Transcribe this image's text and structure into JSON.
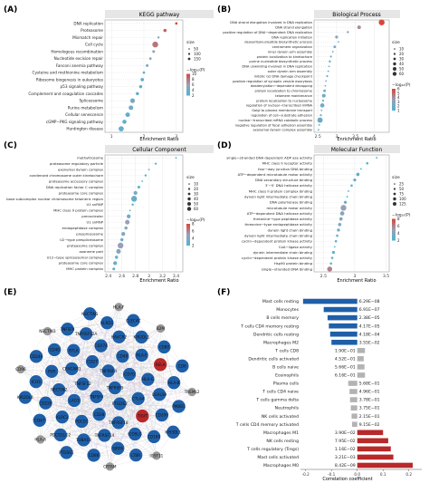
{
  "panels": {
    "a": {
      "letter": "(A)",
      "title": "KEGG pathway",
      "xlabel": "Enrichment Ratio"
    },
    "b": {
      "letter": "(B)",
      "title": "Biological Process",
      "xlabel": "Enrichment Ratio"
    },
    "c": {
      "letter": "(C)",
      "title": "Cellular Component",
      "xlabel": "Enrichment Ratio"
    },
    "d": {
      "letter": "(D)",
      "title": "Molecular Function",
      "xlabel": "Enrichment Ratio"
    },
    "e": {
      "letter": "(E)"
    },
    "f": {
      "letter": "(F)",
      "xlabel": "Correlation coefficient"
    }
  },
  "legends": {
    "size_title": "size",
    "color_title": "−log₁₀(P)"
  },
  "colors": {
    "low": "#4fb4d0",
    "mid": "#9aa0b8",
    "high": "#d9473a",
    "network_red": "#b8292a",
    "network_blue": "#1f5fa8",
    "network_gray": "#9a9a9a",
    "bar_blue": "#1f5fa8",
    "bar_gray": "#b3b3b3",
    "bar_red": "#b8292a"
  },
  "chart_data": [
    {
      "id": "kegg",
      "type": "scatter",
      "title": "KEGG pathway",
      "xlabel": "Enrichment Ratio",
      "xlim": [
        0.8,
        3.2
      ],
      "xticks": [
        1,
        2,
        3
      ],
      "size_legend": [
        50,
        100,
        150
      ],
      "color_legend": [
        2,
        4,
        6,
        8,
        10
      ],
      "categories": [
        "DNA replication",
        "Proteasome",
        "Mismatch repair",
        "Cell cycle",
        "Homologous recombination",
        "Nucleotide excision repair",
        "Fanconi anemia pathway",
        "Cysteine and methionine metabolism",
        "Ribosome biogenesis in eukaryotes",
        "p53 signaling pathway",
        "Complement and coagulation cascades",
        "Spliceosome",
        "Purine metabolism",
        "Cellular senescence",
        "cGMP−PKG signaling pathway",
        "Huntington disease"
      ],
      "x": [
        3.0,
        2.65,
        2.45,
        2.35,
        2.3,
        2.2,
        2.1,
        2.0,
        1.95,
        1.9,
        1.8,
        1.65,
        1.6,
        1.5,
        1.4,
        1.3
      ],
      "size": [
        40,
        55,
        35,
        130,
        45,
        40,
        45,
        40,
        60,
        55,
        55,
        95,
        90,
        90,
        80,
        110
      ],
      "neglog10p": [
        10,
        9,
        5,
        8,
        5,
        4,
        4,
        3,
        3,
        3,
        3,
        4,
        4,
        3,
        3,
        3
      ]
    },
    {
      "id": "bp",
      "type": "scatter",
      "title": "Biological Process",
      "xlabel": "Enrichment Ratio",
      "xlim": [
        2.4,
        4.4
      ],
      "xticks": [
        2.5,
        3.0,
        3.5,
        4.0
      ],
      "size_legend": [
        10,
        20,
        30,
        40,
        50,
        60
      ],
      "color_legend": [
        1,
        2,
        3,
        4,
        5,
        6
      ],
      "categories": [
        "DNA strand elongation involved in DNA replication",
        "DNA strand elongation",
        "positive regulation of DNA−dependent DNA replication",
        "DNA replication initiation",
        "deoxyribonucleotide biosynthetic process",
        "centromere organization",
        "inner dynein arm assembly",
        "protein localization to kinetochore",
        "purine nucleotide biosynthetic process",
        "DNA unwinding involved in DNA replication",
        "outer dynein arm assembly",
        "mitotic G2 DNA damage checkpoint",
        "positive regulation of synaptic vesicle exocytosis",
        "deadenylation−dependent decapping",
        "protein localization to chromosome",
        "telomere maintenance",
        "protein localization to nucleosome",
        "regulation of nuclear−transcribed mRNA",
        "Golgi to plasma membrane transport",
        "regulation of cell−substrate adhesion",
        "nuclear−transcribed mRNA catabolic process",
        "negative regulation of focal adhesion assembly",
        "axonemal dynein complex assembly"
      ],
      "x": [
        4.2,
        3.6,
        3.3,
        3.0,
        3.05,
        2.95,
        2.9,
        2.85,
        2.82,
        2.8,
        2.78,
        2.75,
        2.72,
        2.7,
        2.68,
        2.66,
        2.64,
        2.62,
        2.6,
        2.58,
        2.56,
        2.54,
        2.52
      ],
      "size": [
        45,
        25,
        15,
        20,
        12,
        18,
        12,
        14,
        15,
        12,
        12,
        14,
        12,
        12,
        18,
        25,
        14,
        30,
        12,
        14,
        40,
        12,
        12
      ],
      "neglog10p": [
        6,
        4,
        3,
        3,
        2,
        2,
        2,
        2,
        2,
        2,
        2,
        2,
        2,
        2,
        2,
        2,
        2,
        2,
        2,
        2,
        2,
        2,
        2
      ]
    },
    {
      "id": "cc",
      "type": "scatter",
      "title": "Cellular Component",
      "xlabel": "Enrichment Ratio",
      "xlim": [
        2.35,
        3.5
      ],
      "xticks": [
        2.4,
        2.6,
        2.8,
        3.0,
        3.2,
        3.4
      ],
      "size_legend": [
        10,
        20,
        30,
        40,
        50,
        60
      ],
      "color_legend": [
        2,
        4,
        6,
        8
      ],
      "categories": [
        "methyltrosome",
        "proteasome regulatory particle",
        "axonemal dynein complex",
        "condensed chromosome outer kinetochore",
        "proteasome accessory complex",
        "DNA replication factor C complex",
        "proteasome core complex",
        "base subcomplex nuclear chromosome telomeric region",
        "U1 snRNP",
        "MHC class II protein complex",
        "prenucleolar",
        "U1 snRNP",
        "endopeptidase complex",
        "prespliceosome",
        "U2−type prespliceosome",
        "proteasome complex",
        "axoneme part",
        "U12−type spliceosomal complex",
        "proteasome core complex",
        "MHC protein complex"
      ],
      "x": [
        3.4,
        3.1,
        3.0,
        2.95,
        2.9,
        2.85,
        2.8,
        2.78,
        2.76,
        2.72,
        2.7,
        2.68,
        2.66,
        2.62,
        2.6,
        2.58,
        2.55,
        2.52,
        2.5,
        2.48
      ],
      "size": [
        12,
        14,
        12,
        15,
        12,
        18,
        25,
        40,
        15,
        12,
        25,
        30,
        20,
        25,
        20,
        40,
        30,
        20,
        25,
        18
      ],
      "neglog10p": [
        2,
        2,
        2,
        2,
        2,
        2,
        4,
        3,
        2,
        3,
        3,
        5,
        4,
        4,
        3,
        5,
        4,
        3,
        3,
        3
      ]
    },
    {
      "id": "mf",
      "type": "scatter",
      "title": "Molecular Function",
      "xlabel": "Enrichment Ratio",
      "xlim": [
        2.35,
        3.55
      ],
      "xticks": [
        2.5,
        3.0,
        3.5
      ],
      "size_legend": [
        25,
        50,
        75,
        100,
        125
      ],
      "color_legend": [
        2,
        4,
        6,
        8
      ],
      "categories": [
        "single−stranded DNA dependent ADP ase activity",
        "MHC class II receptor activity",
        "four−way junction DNA binding",
        "ATP−dependent microtubule motor activity",
        "DNA secondary structure binding",
        "3’−5’ DNA helicase activity",
        "MHC class II protein complex binding",
        "dynein light intermediate chain binding",
        "DNA polymerase binding",
        "microtubule motor activity",
        "ATP−dependent DNA helicase activity",
        "threonine−type peptidase activity",
        "threonine−type endopeptidase activity",
        "dynein light chain binding",
        "dynein light intermediate chain binding",
        "cyclin−dependent protein kinase activity",
        "CoA−ligase activity",
        "dynein intermediate chain binding",
        "cyclin−dependent protein kinase activity",
        "Hsp90 protein binding",
        "single−stranded DNA binding"
      ],
      "x": [
        3.35,
        3.2,
        3.1,
        3.05,
        3.0,
        2.95,
        2.9,
        2.88,
        2.85,
        2.82,
        2.8,
        2.78,
        2.76,
        2.74,
        2.72,
        2.7,
        2.68,
        2.66,
        2.64,
        2.62,
        2.6
      ],
      "size": [
        12,
        15,
        12,
        20,
        18,
        15,
        12,
        12,
        18,
        35,
        25,
        20,
        20,
        18,
        15,
        15,
        12,
        18,
        15,
        15,
        30
      ],
      "neglog10p": [
        2,
        2,
        2,
        3,
        3,
        2,
        2,
        2,
        3,
        5,
        4,
        4,
        4,
        3,
        3,
        3,
        2,
        3,
        3,
        3,
        6
      ]
    },
    {
      "id": "immune",
      "type": "bar",
      "xlabel": "Correlation coefficient",
      "xlim": [
        -0.22,
        0.25
      ],
      "xticks": [
        -0.2,
        -0.1,
        0.0,
        0.1,
        0.2
      ],
      "categories": [
        "Mast cells resting",
        "Monocytes",
        "B cells memory",
        "T cells CD4 memory resting",
        "Dendritic cells resting",
        "Macrophages M2",
        "T cells CD8",
        "Dendritic cells activated",
        "B cells naive",
        "Eosinophils",
        "Plasma cells",
        "T cells CD4 naive",
        "T cells gamma delta",
        "Neutrophils",
        "NK cells activated",
        "T cells CD4 memory activated",
        "Macrophages M1",
        "NK cells resting",
        "T cells regulatory (Tregs)",
        "Mast cells activated",
        "Macrophages M0"
      ],
      "values": [
        -0.21,
        -0.13,
        -0.115,
        -0.11,
        -0.105,
        -0.1,
        0.03,
        0.025,
        0.028,
        0.03,
        -0.035,
        -0.03,
        -0.028,
        -0.025,
        -0.022,
        -0.02,
        0.1,
        0.12,
        0.13,
        0.14,
        0.215
      ],
      "pvalues": [
        "6.29E−08",
        "6.91E−07",
        "2.38E−05",
        "4.17E−05",
        "4.18E−04",
        "3.55E−02",
        "1.90E−01",
        "4.52E−01",
        "5.66E−01",
        "6.16E−01",
        "5.68E−01",
        "4.96E−01",
        "3.78E−01",
        "3.75E−01",
        "2.15E−01",
        "9.15E−02",
        "3.90E−02",
        "7.95E−02",
        "1.16E−02",
        "3.21E−03",
        "8.42E−09"
      ],
      "bar_color": [
        "blue",
        "blue",
        "blue",
        "blue",
        "blue",
        "blue",
        "gray",
        "gray",
        "gray",
        "gray",
        "gray",
        "gray",
        "gray",
        "gray",
        "gray",
        "gray",
        "red",
        "red",
        "red",
        "red",
        "red"
      ]
    }
  ],
  "network": {
    "nodes": [
      {
        "id": "TNFRSF9",
        "group": "blue"
      },
      {
        "id": "TNFSF4",
        "group": "blue"
      },
      {
        "id": "TNFRSF4",
        "group": "blue"
      },
      {
        "id": "PTGDS2",
        "group": "blue"
      },
      {
        "id": "TNFSF12",
        "group": "blue"
      },
      {
        "id": "CD70",
        "group": "blue"
      },
      {
        "id": "CD28",
        "group": "blue"
      },
      {
        "id": "CD27",
        "group": "blue"
      },
      {
        "id": "CTLA4",
        "group": "blue"
      },
      {
        "id": "LAG3",
        "group": "blue"
      },
      {
        "id": "CD48",
        "group": "blue"
      },
      {
        "id": "TNFRSF18",
        "group": "blue"
      },
      {
        "id": "CEACAM1",
        "group": "blue"
      },
      {
        "id": "HLA-G",
        "group": "blue"
      },
      {
        "id": "PDCD1",
        "group": "blue"
      },
      {
        "id": "CD274",
        "group": "blue"
      },
      {
        "id": "TIGIT",
        "group": "red"
      },
      {
        "id": "NECTIN2",
        "group": "blue"
      },
      {
        "id": "HLA-E",
        "group": "blue"
      },
      {
        "id": "TNFRSF14",
        "group": "blue"
      },
      {
        "id": "BTLA",
        "group": "blue"
      },
      {
        "id": "LGALS9",
        "group": "blue"
      },
      {
        "id": "KLRC1",
        "group": "blue"
      },
      {
        "id": "HAVCR2",
        "group": "blue"
      },
      {
        "id": "ICOSLG",
        "group": "blue"
      },
      {
        "id": "PVR",
        "group": "blue"
      },
      {
        "id": "RELA",
        "group": "red"
      },
      {
        "id": "TUBA1B",
        "group": "blue"
      },
      {
        "id": "TNFRSF12A",
        "group": "blue"
      },
      {
        "id": "CD200",
        "group": "blue"
      },
      {
        "id": "CD226",
        "group": "blue"
      },
      {
        "id": "KIR2DL1",
        "group": "blue"
      },
      {
        "id": "SIRPA",
        "group": "blue"
      },
      {
        "id": "CD40",
        "group": "blue"
      },
      {
        "id": "HLA-B",
        "group": "blue"
      },
      {
        "id": "PDCD1LG2",
        "group": "blue"
      },
      {
        "id": "KLRD1",
        "group": "blue"
      },
      {
        "id": "CD160",
        "group": "blue"
      },
      {
        "id": "ICOS",
        "group": "blue"
      },
      {
        "id": "CD80",
        "group": "blue"
      },
      {
        "id": "CD86",
        "group": "blue"
      },
      {
        "id": "TNFSF9",
        "group": "blue"
      },
      {
        "id": "PMBB1",
        "group": "blue"
      },
      {
        "id": "CD47",
        "group": "blue"
      },
      {
        "id": "CLEC4C",
        "group": "blue"
      },
      {
        "id": "LTBR",
        "group": "blue"
      },
      {
        "id": "CD244",
        "group": "blue"
      },
      {
        "id": "CD6",
        "group": "blue"
      },
      {
        "id": "PTDSS1",
        "group": "blue"
      },
      {
        "id": "NECTIN1",
        "group": "blue"
      },
      {
        "id": "KIR3DL1",
        "group": "blue"
      },
      {
        "id": "KIR2DL4",
        "group": "blue"
      },
      {
        "id": "B2M",
        "group": "gray"
      },
      {
        "id": "CRTAM",
        "group": "gray"
      },
      {
        "id": "NECTIN3",
        "group": "gray"
      },
      {
        "id": "TREML2",
        "group": "gray"
      },
      {
        "id": "HLA-A",
        "group": "gray"
      },
      {
        "id": "HLA-F",
        "group": "gray"
      },
      {
        "id": "IGSF11",
        "group": "gray"
      },
      {
        "id": "CD96",
        "group": "gray"
      }
    ]
  }
}
